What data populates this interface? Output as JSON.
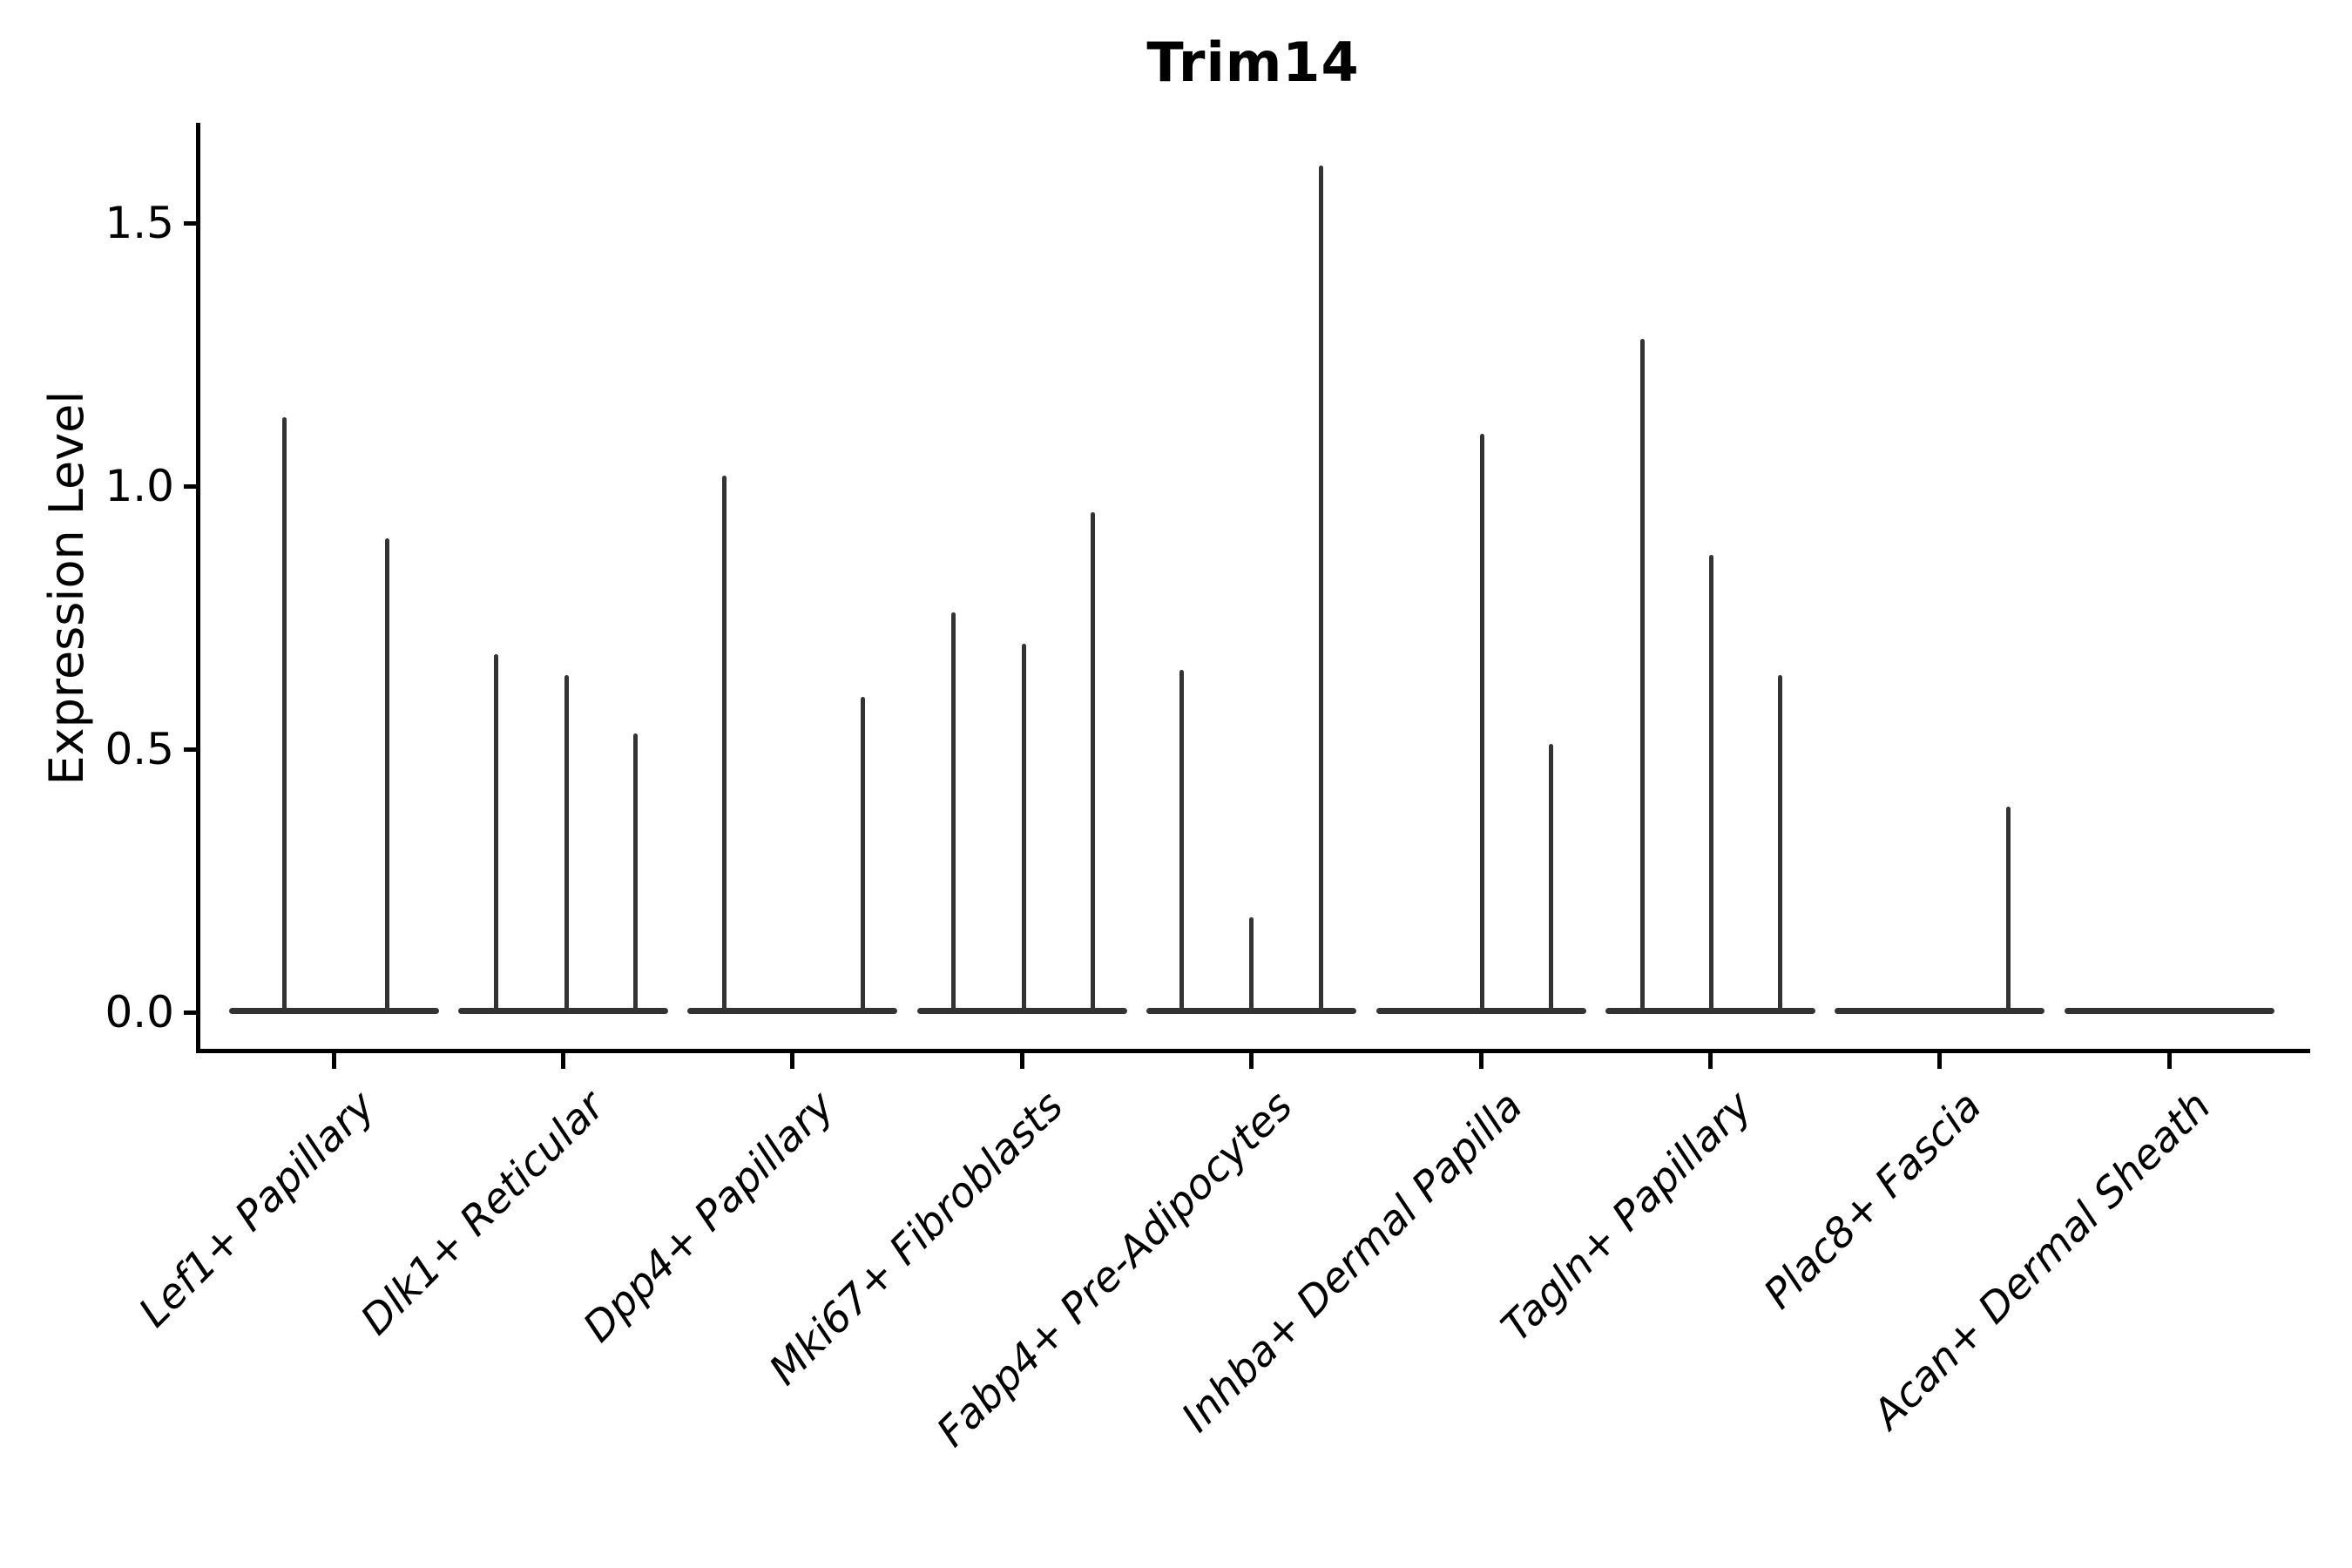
{
  "title": "Trim14",
  "y_axis": {
    "label": "Expression Level",
    "tick_labels": [
      "0.0",
      "0.5",
      "1.0",
      "1.5"
    ]
  },
  "chart_data": {
    "type": "violin",
    "title": "Trim14",
    "xlabel": "",
    "ylabel": "Expression Level",
    "ylim": [
      0,
      1.69
    ],
    "yticks": [
      0.0,
      0.5,
      1.0,
      1.5
    ],
    "ytick_labels": [
      "0.0",
      "0.5",
      "1.0",
      "1.5"
    ],
    "grid": false,
    "legend": "none",
    "stroke_color": "#333333",
    "axis_color": "#000000",
    "categories": [
      "Lef1+ Papillary",
      "Dlk1+ Reticular",
      "Dpp4+ Papillary",
      "Mki67+ Fibroblasts",
      "Fabp4+ Pre-Adipocytes",
      "Inhba+ Dermal Papilla",
      "Tagln+ Papillary",
      "Plac8+ Fascia",
      "Acan+ Dermal Sheath"
    ],
    "violins": [
      {
        "category": "Lef1+ Papillary",
        "baseline_value": 0.0,
        "spikes": [
          {
            "dx": -57,
            "value": 1.13
          },
          {
            "dx": 61,
            "value": 0.9
          }
        ]
      },
      {
        "category": "Dlk1+ Reticular",
        "baseline_value": 0.0,
        "spikes": [
          {
            "dx": -77,
            "value": 0.68
          },
          {
            "dx": 4,
            "value": 0.64
          },
          {
            "dx": 83,
            "value": 0.53
          }
        ]
      },
      {
        "category": "Dpp4+ Papillary",
        "baseline_value": 0.0,
        "spikes": [
          {
            "dx": -78,
            "value": 1.02
          },
          {
            "dx": 81,
            "value": 0.6
          }
        ]
      },
      {
        "category": "Mki67+ Fibroblasts",
        "baseline_value": 0.0,
        "spikes": [
          {
            "dx": -79,
            "value": 0.76
          },
          {
            "dx": 2,
            "value": 0.7
          },
          {
            "dx": 81,
            "value": 0.95
          }
        ]
      },
      {
        "category": "Fabp4+ Pre-Adipocytes",
        "baseline_value": 0.0,
        "spikes": [
          {
            "dx": -80,
            "value": 0.65
          },
          {
            "dx": 0,
            "value": 0.18
          },
          {
            "dx": 80,
            "value": 1.61
          }
        ]
      },
      {
        "category": "Inhba+ Dermal Papilla",
        "baseline_value": 0.0,
        "spikes": [
          {
            "dx": 1,
            "value": 1.1
          },
          {
            "dx": 80,
            "value": 0.51
          }
        ]
      },
      {
        "category": "Tagln+ Papillary",
        "baseline_value": 0.0,
        "spikes": [
          {
            "dx": -78,
            "value": 1.28
          },
          {
            "dx": 1,
            "value": 0.87
          },
          {
            "dx": 80,
            "value": 0.64
          }
        ]
      },
      {
        "category": "Plac8+ Fascia",
        "baseline_value": 0.0,
        "spikes": [
          {
            "dx": 79,
            "value": 0.39
          }
        ]
      },
      {
        "category": "Acan+ Dermal Sheath",
        "baseline_value": 0.0,
        "spikes": []
      }
    ]
  }
}
